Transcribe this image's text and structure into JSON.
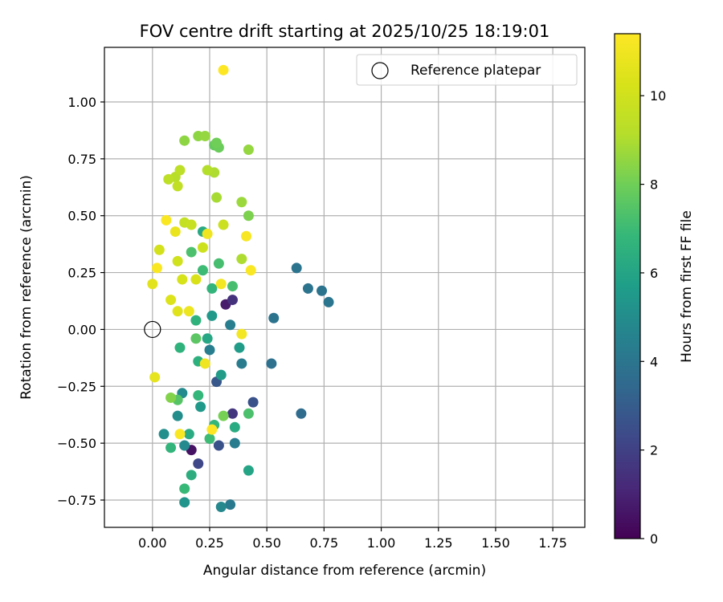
{
  "chart_data": {
    "type": "scatter",
    "title": "FOV centre drift starting at 2025/10/25 18:19:01",
    "xlabel": "Angular distance from reference (arcmin)",
    "ylabel": "Rotation from reference (arcmin)",
    "xlim": [
      -0.21,
      1.89
    ],
    "ylim": [
      -0.87,
      1.24
    ],
    "xticks": [
      0.0,
      0.25,
      0.5,
      0.75,
      1.0,
      1.25,
      1.5,
      1.75
    ],
    "xtick_labels": [
      "0.00",
      "0.25",
      "0.50",
      "0.75",
      "1.00",
      "1.25",
      "1.50",
      "1.75"
    ],
    "yticks": [
      -0.75,
      -0.5,
      -0.25,
      0.0,
      0.25,
      0.5,
      0.75,
      1.0
    ],
    "ytick_labels": [
      "−0.75",
      "−0.50",
      "−0.25",
      "0.00",
      "0.25",
      "0.50",
      "0.75",
      "1.00"
    ],
    "grid": true,
    "legend": {
      "position": "top-right",
      "entries": [
        "Reference platepar"
      ]
    },
    "colorbar": {
      "label": "Hours from first FF file",
      "range": [
        0,
        11.4
      ],
      "ticks": [
        0,
        2,
        4,
        6,
        8,
        10
      ],
      "tick_labels": [
        "0",
        "2",
        "4",
        "6",
        "8",
        "10"
      ],
      "colormap": "viridis"
    },
    "reference": {
      "x": 0.0,
      "y": 0.0,
      "label": "Reference platepar"
    },
    "points": [
      {
        "x": 0.17,
        "y": -0.53,
        "h": 0.5
      },
      {
        "x": 0.32,
        "y": 0.11,
        "h": 0.8
      },
      {
        "x": 0.35,
        "y": 0.13,
        "h": 1.5
      },
      {
        "x": 0.35,
        "y": -0.37,
        "h": 1.6
      },
      {
        "x": 0.2,
        "y": -0.59,
        "h": 2.2
      },
      {
        "x": 0.44,
        "y": -0.32,
        "h": 2.6
      },
      {
        "x": 0.29,
        "y": -0.51,
        "h": 2.6
      },
      {
        "x": 0.28,
        "y": -0.23,
        "h": 2.8
      },
      {
        "x": 0.65,
        "y": -0.37,
        "h": 3.6
      },
      {
        "x": 0.52,
        "y": -0.15,
        "h": 3.8
      },
      {
        "x": 0.53,
        "y": 0.05,
        "h": 3.9
      },
      {
        "x": 0.63,
        "y": 0.27,
        "h": 3.9
      },
      {
        "x": 0.68,
        "y": 0.18,
        "h": 3.9
      },
      {
        "x": 0.74,
        "y": 0.17,
        "h": 3.9
      },
      {
        "x": 0.77,
        "y": 0.12,
        "h": 4.0
      },
      {
        "x": 0.34,
        "y": -0.77,
        "h": 4.2
      },
      {
        "x": 0.39,
        "y": -0.15,
        "h": 4.3
      },
      {
        "x": 0.36,
        "y": -0.5,
        "h": 4.3
      },
      {
        "x": 0.25,
        "y": -0.09,
        "h": 4.4
      },
      {
        "x": 0.34,
        "y": 0.02,
        "h": 4.4
      },
      {
        "x": 0.3,
        "y": -0.78,
        "h": 4.8
      },
      {
        "x": 0.13,
        "y": -0.28,
        "h": 4.9
      },
      {
        "x": 0.14,
        "y": -0.51,
        "h": 4.9
      },
      {
        "x": 0.11,
        "y": -0.38,
        "h": 5.0
      },
      {
        "x": 0.05,
        "y": -0.46,
        "h": 5.1
      },
      {
        "x": 0.14,
        "y": -0.76,
        "h": 5.3
      },
      {
        "x": 0.21,
        "y": -0.34,
        "h": 5.5
      },
      {
        "x": 0.26,
        "y": 0.06,
        "h": 5.5
      },
      {
        "x": 0.3,
        "y": -0.2,
        "h": 5.6
      },
      {
        "x": 0.38,
        "y": -0.08,
        "h": 5.6
      },
      {
        "x": 0.42,
        "y": -0.62,
        "h": 6.0
      },
      {
        "x": 0.24,
        "y": -0.04,
        "h": 6.1
      },
      {
        "x": 0.22,
        "y": 0.43,
        "h": 6.2
      },
      {
        "x": 0.16,
        "y": -0.46,
        "h": 6.3
      },
      {
        "x": 0.36,
        "y": -0.43,
        "h": 6.3
      },
      {
        "x": 0.17,
        "y": -0.64,
        "h": 6.4
      },
      {
        "x": 0.2,
        "y": -0.14,
        "h": 6.5
      },
      {
        "x": 0.12,
        "y": -0.08,
        "h": 6.6
      },
      {
        "x": 0.19,
        "y": 0.04,
        "h": 6.6
      },
      {
        "x": 0.26,
        "y": 0.18,
        "h": 6.7
      },
      {
        "x": 0.08,
        "y": -0.52,
        "h": 6.7
      },
      {
        "x": 0.2,
        "y": -0.29,
        "h": 6.8
      },
      {
        "x": 0.27,
        "y": -0.42,
        "h": 6.8
      },
      {
        "x": 0.14,
        "y": -0.7,
        "h": 6.9
      },
      {
        "x": 0.25,
        "y": -0.48,
        "h": 7.0
      },
      {
        "x": 0.22,
        "y": 0.26,
        "h": 7.0
      },
      {
        "x": 0.29,
        "y": 0.29,
        "h": 7.2
      },
      {
        "x": 0.35,
        "y": 0.19,
        "h": 7.2
      },
      {
        "x": 0.17,
        "y": 0.34,
        "h": 7.3
      },
      {
        "x": 0.42,
        "y": -0.37,
        "h": 7.3
      },
      {
        "x": 0.11,
        "y": -0.31,
        "h": 7.5
      },
      {
        "x": 0.19,
        "y": -0.04,
        "h": 7.6
      },
      {
        "x": 0.27,
        "y": 0.81,
        "h": 7.8
      },
      {
        "x": 0.29,
        "y": 0.8,
        "h": 7.9
      },
      {
        "x": 0.28,
        "y": 0.82,
        "h": 8.0
      },
      {
        "x": 0.31,
        "y": -0.38,
        "h": 8.1
      },
      {
        "x": 0.42,
        "y": 0.5,
        "h": 8.2
      },
      {
        "x": 0.08,
        "y": -0.3,
        "h": 8.3
      },
      {
        "x": 0.14,
        "y": 0.83,
        "h": 8.5
      },
      {
        "x": 0.2,
        "y": 0.85,
        "h": 8.5
      },
      {
        "x": 0.23,
        "y": 0.85,
        "h": 8.6
      },
      {
        "x": 0.42,
        "y": 0.79,
        "h": 8.6
      },
      {
        "x": 0.39,
        "y": 0.56,
        "h": 8.7
      },
      {
        "x": 0.28,
        "y": 0.58,
        "h": 8.9
      },
      {
        "x": 0.39,
        "y": 0.31,
        "h": 9.0
      },
      {
        "x": 0.27,
        "y": 0.69,
        "h": 9.0
      },
      {
        "x": 0.24,
        "y": 0.7,
        "h": 9.1
      },
      {
        "x": 0.1,
        "y": 0.67,
        "h": 9.2
      },
      {
        "x": 0.07,
        "y": 0.66,
        "h": 9.4
      },
      {
        "x": 0.12,
        "y": 0.7,
        "h": 9.4
      },
      {
        "x": 0.11,
        "y": 0.63,
        "h": 9.5
      },
      {
        "x": 0.14,
        "y": 0.47,
        "h": 9.6
      },
      {
        "x": 0.17,
        "y": 0.46,
        "h": 9.7
      },
      {
        "x": 0.31,
        "y": 0.46,
        "h": 9.8
      },
      {
        "x": 0.22,
        "y": 0.36,
        "h": 9.9
      },
      {
        "x": 0.11,
        "y": 0.3,
        "h": 10.0
      },
      {
        "x": 0.03,
        "y": 0.35,
        "h": 10.1
      },
      {
        "x": 0.13,
        "y": 0.22,
        "h": 10.2
      },
      {
        "x": 0.19,
        "y": 0.22,
        "h": 10.3
      },
      {
        "x": 0.08,
        "y": 0.13,
        "h": 10.4
      },
      {
        "x": 0.11,
        "y": 0.08,
        "h": 10.5
      },
      {
        "x": 0.0,
        "y": 0.2,
        "h": 10.6
      },
      {
        "x": 0.01,
        "y": -0.21,
        "h": 10.7
      },
      {
        "x": 0.1,
        "y": 0.43,
        "h": 10.8
      },
      {
        "x": 0.16,
        "y": 0.08,
        "h": 10.9
      },
      {
        "x": 0.23,
        "y": -0.15,
        "h": 11.0
      },
      {
        "x": 0.24,
        "y": 0.42,
        "h": 11.0
      },
      {
        "x": 0.3,
        "y": 0.2,
        "h": 11.1
      },
      {
        "x": 0.39,
        "y": -0.02,
        "h": 11.1
      },
      {
        "x": 0.41,
        "y": 0.41,
        "h": 11.2
      },
      {
        "x": 0.43,
        "y": 0.26,
        "h": 11.3
      },
      {
        "x": 0.06,
        "y": 0.48,
        "h": 11.3
      },
      {
        "x": 0.02,
        "y": 0.27,
        "h": 11.3
      },
      {
        "x": 0.12,
        "y": -0.46,
        "h": 11.3
      },
      {
        "x": 0.26,
        "y": -0.44,
        "h": 11.4
      },
      {
        "x": 0.31,
        "y": 1.14,
        "h": 11.4
      }
    ]
  }
}
